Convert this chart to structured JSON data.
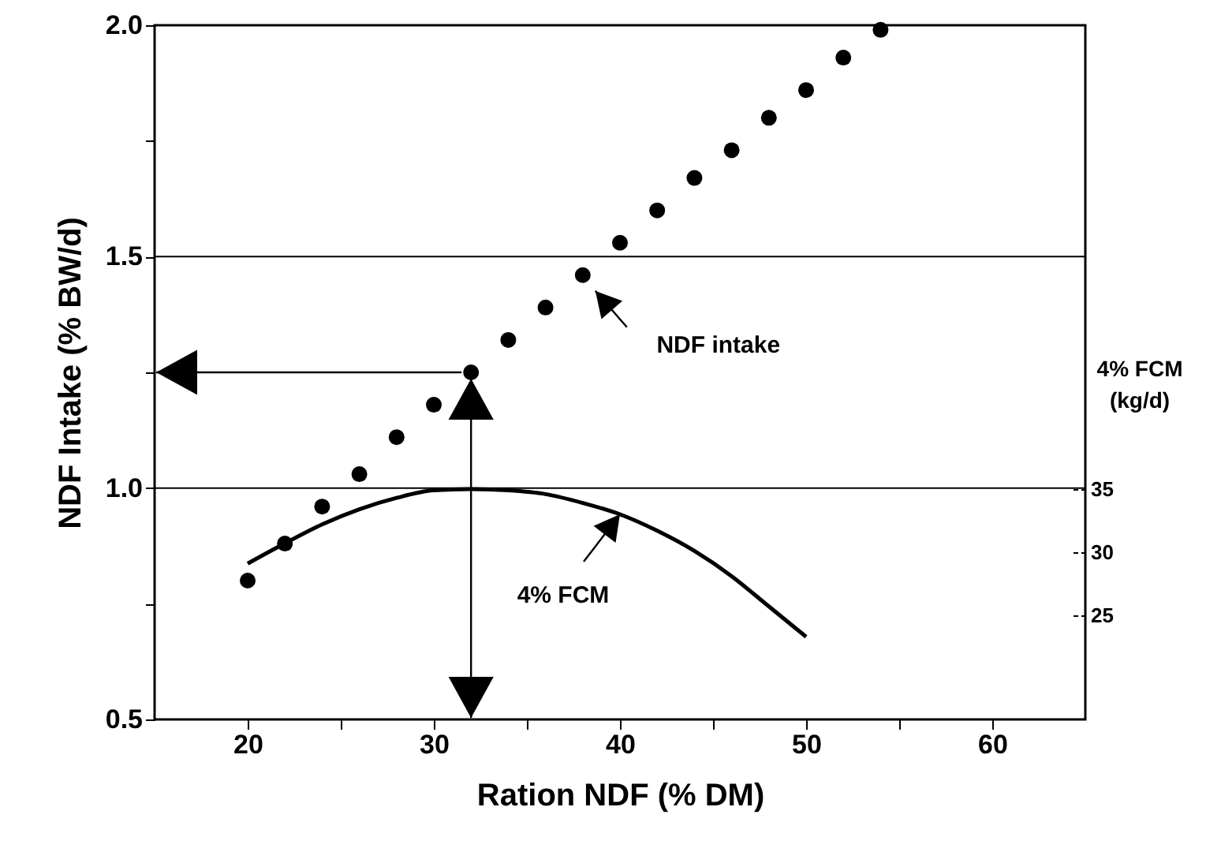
{
  "chart_data": {
    "type": "scatter",
    "xlabel": "Ration NDF (% DM)",
    "ylabel": "NDF Intake (% BW/d)",
    "y2label": "4% FCM (kg/d)",
    "x": [
      20,
      22,
      24,
      26,
      28,
      30,
      32,
      34,
      36,
      38,
      40,
      42,
      44,
      46,
      48,
      50,
      52,
      54
    ],
    "series": [
      {
        "color": "#000000",
        "marker": "circle",
        "values": [
          0.8,
          0.88,
          0.96,
          1.03,
          1.11,
          1.18,
          1.25,
          1.32,
          1.39,
          1.46,
          1.53,
          1.6,
          1.67,
          1.73,
          1.8,
          1.86,
          1.93,
          1.99
        ]
      },
      {
        "type": "line",
        "axis": "y2",
        "color": "#000000",
        "marker": "none",
        "line_style": "solid",
        "x": [
          20,
          22,
          24,
          26,
          28,
          30,
          32,
          34,
          36,
          38,
          40,
          42,
          44,
          46,
          48,
          50
        ],
        "values": [
          29.1,
          30.7,
          32.2,
          33.4,
          34.3,
          34.9,
          35.0,
          34.9,
          34.6,
          33.9,
          33.0,
          31.7,
          30.1,
          28.1,
          25.7,
          23.3
        ]
      }
    ],
    "xlim": [
      15,
      65
    ],
    "xticks": [
      20,
      {
        "value": 25,
        "label": null
      },
      30,
      {
        "value": 35,
        "label": null
      },
      40,
      {
        "value": 45,
        "label": null
      },
      50,
      {
        "value": 55,
        "label": null
      },
      60
    ],
    "ylim": [
      0.5,
      2.0
    ],
    "yticks": [
      0.5,
      {
        "value": 0.75,
        "label": null
      },
      {
        "value": 1.0,
        "label": "1.0"
      },
      {
        "value": 1.25,
        "label": null
      },
      1.5,
      {
        "value": 1.75,
        "label": null
      },
      {
        "value": 2.0,
        "label": "2.0"
      }
    ],
    "y2lim": [
      16.75,
      71.75
    ],
    "y2ticks": [
      25,
      30,
      35
    ],
    "grid": "y",
    "annotations": [
      "NDF intake",
      "4% FCM"
    ]
  }
}
